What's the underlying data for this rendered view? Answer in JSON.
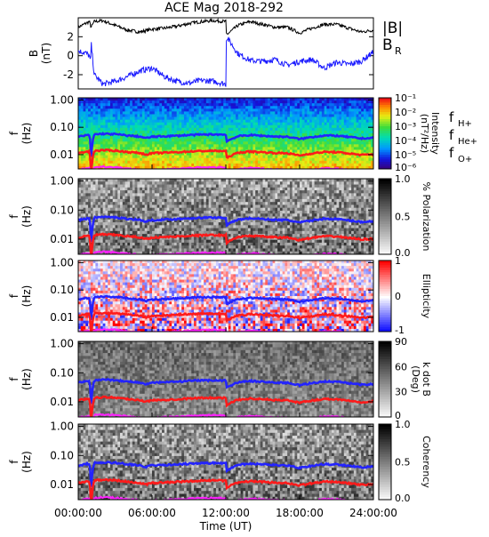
{
  "title": "ACE Mag 2018-292",
  "x_axis": {
    "label": "Time (UT)",
    "ticks": [
      "00:00:00",
      "06:00:00",
      "12:00:00",
      "18:00:00",
      "24:00:00"
    ],
    "range_hours": [
      0,
      24
    ]
  },
  "colors": {
    "B_total": "#000000",
    "B_R": "#1a1aff",
    "f_H": "#2323ff",
    "f_He": "#ff1a1a",
    "f_O": "#ff20ff"
  },
  "chart_data": [
    {
      "type": "line",
      "panel": "field",
      "ylabel": [
        "B",
        "(nT)"
      ],
      "yticks": [
        "2",
        "0",
        "-2"
      ],
      "ylim": [
        -3.5,
        4
      ],
      "legend": [
        {
          "label": "|B|",
          "color": "#000000"
        },
        {
          "label": "B",
          "sub": "R",
          "color": "#1a1aff"
        }
      ],
      "x": [
        0,
        0.6,
        0.9,
        1.0,
        1.05,
        1.3,
        2,
        3,
        4,
        5,
        6,
        7,
        8,
        9,
        10,
        11,
        12,
        12.05,
        13,
        14,
        15,
        16,
        17,
        18,
        19,
        20,
        21,
        22,
        23,
        24
      ],
      "series": [
        {
          "name": "|B|",
          "values": [
            3.0,
            3.4,
            3.6,
            3.2,
            3.0,
            3.6,
            3.7,
            3.2,
            2.7,
            2.5,
            2.8,
            2.9,
            3.1,
            3.4,
            3.6,
            3.7,
            3.6,
            2.2,
            3.2,
            3.6,
            3.3,
            3.0,
            3.0,
            2.4,
            2.9,
            3.3,
            3.3,
            2.9,
            2.5,
            2.7
          ]
        },
        {
          "name": "B_R",
          "values": [
            0.5,
            0.3,
            0.0,
            -0.8,
            1.3,
            -2.0,
            -3.0,
            -2.7,
            -2.2,
            -1.6,
            -1.3,
            -2.2,
            -2.7,
            -2.9,
            -2.6,
            -2.7,
            -3.0,
            2.0,
            0.2,
            -0.5,
            -0.6,
            -0.4,
            -1.0,
            -0.6,
            -0.4,
            -1.3,
            -0.7,
            -0.9,
            -0.6,
            0.4
          ]
        }
      ]
    },
    {
      "type": "heatmap",
      "panel": "intensity",
      "ylabel": [
        "f",
        "(Hz)"
      ],
      "yticks": [
        "1.00",
        "0.10",
        "0.01"
      ],
      "ylim_hz": [
        0.003,
        1.2
      ],
      "colorbar": {
        "label": "Intensity",
        "label2": "(nT²/Hz)",
        "ticks": [
          "10⁻¹",
          "10⁻²",
          "10⁻³",
          "10⁻⁴",
          "10⁻⁵",
          "10⁻⁶"
        ],
        "scale": "rainbow"
      },
      "legend": [
        {
          "label": "f",
          "sub": "H+",
          "color": "#2323ff"
        },
        {
          "label": "f",
          "sub": "He+",
          "color": "#ff1a1a"
        },
        {
          "label": "f",
          "sub": "O+",
          "color": "#ff20ff"
        }
      ]
    },
    {
      "type": "heatmap",
      "panel": "polarization",
      "ylabel": [
        "f",
        "(Hz)"
      ],
      "yticks": [
        "1.00",
        "0.10",
        "0.01"
      ],
      "colorbar": {
        "label": "% Polarization",
        "ticks": [
          "1.0",
          "0.5",
          "0.0"
        ],
        "scale": "gray"
      }
    },
    {
      "type": "heatmap",
      "panel": "ellipticity",
      "ylabel": [
        "f",
        "(Hz)"
      ],
      "yticks": [
        "1.00",
        "0.10",
        "0.01"
      ],
      "colorbar": {
        "label": "Ellipticity",
        "ticks": [
          "1",
          "0",
          "-1"
        ],
        "scale": "bwr"
      }
    },
    {
      "type": "heatmap",
      "panel": "kdotb",
      "ylabel": [
        "f",
        "(Hz)"
      ],
      "yticks": [
        "1.00",
        "0.10",
        "0.01"
      ],
      "colorbar": {
        "label": "k dot B",
        "label2": "(Deg)",
        "ticks": [
          "90",
          "60",
          "30",
          "0"
        ],
        "scale": "gray"
      }
    },
    {
      "type": "heatmap",
      "panel": "coherency",
      "ylabel": [
        "f",
        "(Hz)"
      ],
      "yticks": [
        "1.00",
        "0.10",
        "0.01"
      ],
      "colorbar": {
        "label": "Coherency",
        "ticks": [
          "1.0",
          "0.5",
          "0.0"
        ],
        "scale": "gray"
      }
    }
  ],
  "gyrofrequency": {
    "x": [
      0,
      0.6,
      0.9,
      1.0,
      1.05,
      1.3,
      2,
      3,
      4,
      5,
      5.5,
      6,
      7,
      8,
      9,
      10,
      11,
      12,
      12.05,
      13,
      14,
      15,
      16,
      17,
      18,
      19,
      20,
      21,
      22,
      23,
      24
    ],
    "f_H_hz": [
      0.045,
      0.05,
      0.052,
      0.025,
      0.004,
      0.055,
      0.058,
      0.056,
      0.05,
      0.046,
      0.04,
      0.045,
      0.047,
      0.049,
      0.052,
      0.054,
      0.055,
      0.054,
      0.03,
      0.047,
      0.052,
      0.049,
      0.046,
      0.045,
      0.037,
      0.044,
      0.05,
      0.049,
      0.044,
      0.039,
      0.041
    ],
    "f_He_ratio": 0.25,
    "f_O_ratio": 0.0625
  }
}
